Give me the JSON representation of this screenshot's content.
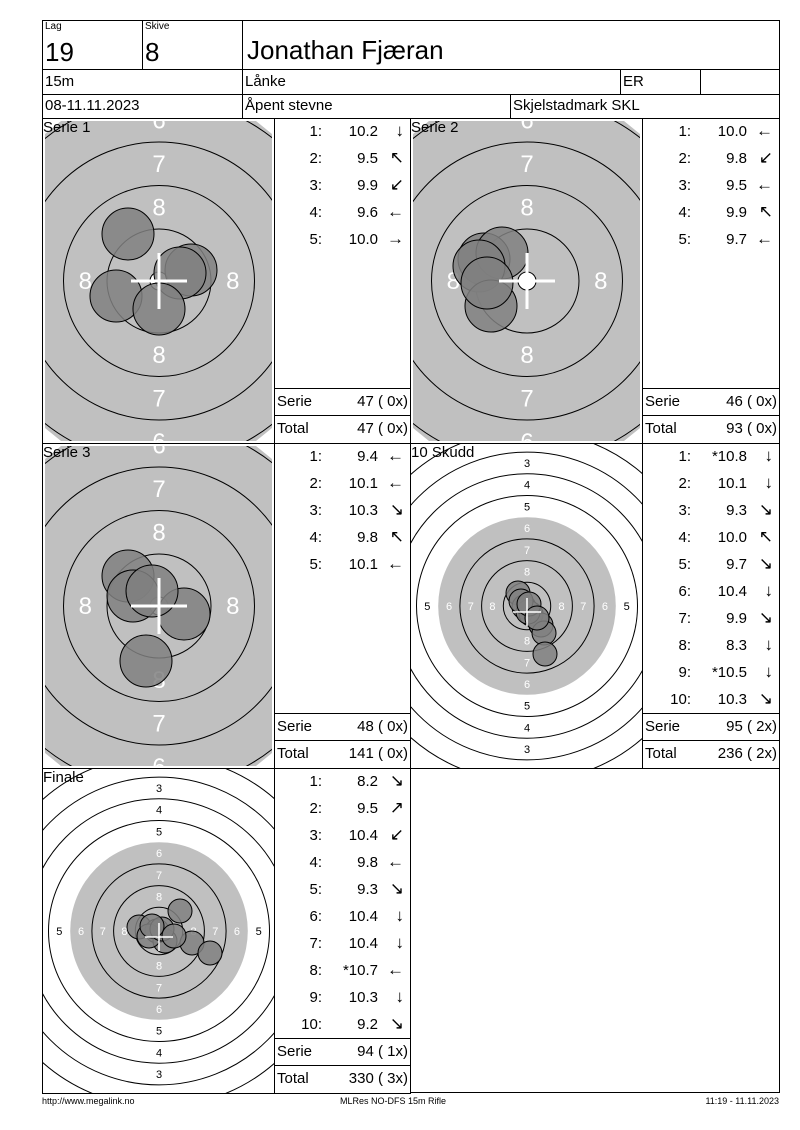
{
  "header": {
    "lag_label": "Lag",
    "lag": "19",
    "skive_label": "Skive",
    "skive": "8",
    "name": "Jonathan Fjæran",
    "distance": "15m",
    "club": "Lånke",
    "class": "ER",
    "extra": "",
    "date": "08-11.11.2023",
    "event": "Åpent stevne",
    "venue": "Skjelstadmark SKL"
  },
  "series": [
    {
      "title": "Serie 1",
      "target": "precision",
      "shots": [
        [
          "1:",
          "10.2",
          "↓"
        ],
        [
          "2:",
          "9.5",
          "↖"
        ],
        [
          "3:",
          "9.9",
          "↙"
        ],
        [
          "4:",
          "9.6",
          "←"
        ],
        [
          "5:",
          "10.0",
          "→"
        ]
      ],
      "serie_label": "Serie",
      "serie": "47 ( 0x)",
      "total_label": "Total",
      "total": "47 ( 0x)"
    },
    {
      "title": "Serie 2",
      "target": "precision",
      "shots": [
        [
          "1:",
          "10.0",
          "←"
        ],
        [
          "2:",
          "9.8",
          "↙"
        ],
        [
          "3:",
          "9.5",
          "←"
        ],
        [
          "4:",
          "9.9",
          "↖"
        ],
        [
          "5:",
          "9.7",
          "←"
        ]
      ],
      "serie_label": "Serie",
      "serie": "46 ( 0x)",
      "total_label": "Total",
      "total": "93 ( 0x)"
    },
    {
      "title": "Serie 3",
      "target": "precision",
      "shots": [
        [
          "1:",
          "9.4",
          "←"
        ],
        [
          "2:",
          "10.1",
          "←"
        ],
        [
          "3:",
          "10.3",
          "↘"
        ],
        [
          "4:",
          "9.8",
          "↖"
        ],
        [
          "5:",
          "10.1",
          "←"
        ]
      ],
      "serie_label": "Serie",
      "serie": "48 ( 0x)",
      "total_label": "Total",
      "total": "141 ( 0x)"
    },
    {
      "title": "10 Skudd",
      "target": "full",
      "shots": [
        [
          "1:",
          "*10.8",
          "↓"
        ],
        [
          "2:",
          "10.1",
          "↓"
        ],
        [
          "3:",
          "9.3",
          "↘"
        ],
        [
          "4:",
          "10.0",
          "↖"
        ],
        [
          "5:",
          "9.7",
          "↘"
        ],
        [
          "6:",
          "10.4",
          "↓"
        ],
        [
          "7:",
          "9.9",
          "↘"
        ],
        [
          "8:",
          "8.3",
          "↓"
        ],
        [
          "9:",
          "*10.5",
          "↓"
        ],
        [
          "10:",
          "10.3",
          "↘"
        ]
      ],
      "serie_label": "Serie",
      "serie": "95 ( 2x)",
      "total_label": "Total",
      "total": "236 ( 2x)"
    },
    {
      "title": "Finale",
      "target": "full",
      "shots": [
        [
          "1:",
          "8.2",
          "↘"
        ],
        [
          "2:",
          "9.5",
          "↗"
        ],
        [
          "3:",
          "10.4",
          "↙"
        ],
        [
          "4:",
          "9.8",
          "←"
        ],
        [
          "5:",
          "9.3",
          "↘"
        ],
        [
          "6:",
          "10.4",
          "↓"
        ],
        [
          "7:",
          "10.4",
          "↓"
        ],
        [
          "8:",
          "*10.7",
          "←"
        ],
        [
          "9:",
          "10.3",
          "↓"
        ],
        [
          "10:",
          "9.2",
          "↘"
        ]
      ],
      "serie_label": "Serie",
      "serie": "94 ( 1x)",
      "total_label": "Total",
      "total": "330 ( 3x)"
    }
  ],
  "footer": {
    "left": "http://www.megalink.no",
    "center": "MLRes NO-DFS 15m Rifle",
    "right": "11:19 - 11.11.2023"
  },
  "colors": {
    "target_gray": "#c0c0c0",
    "shot": "#808080"
  }
}
